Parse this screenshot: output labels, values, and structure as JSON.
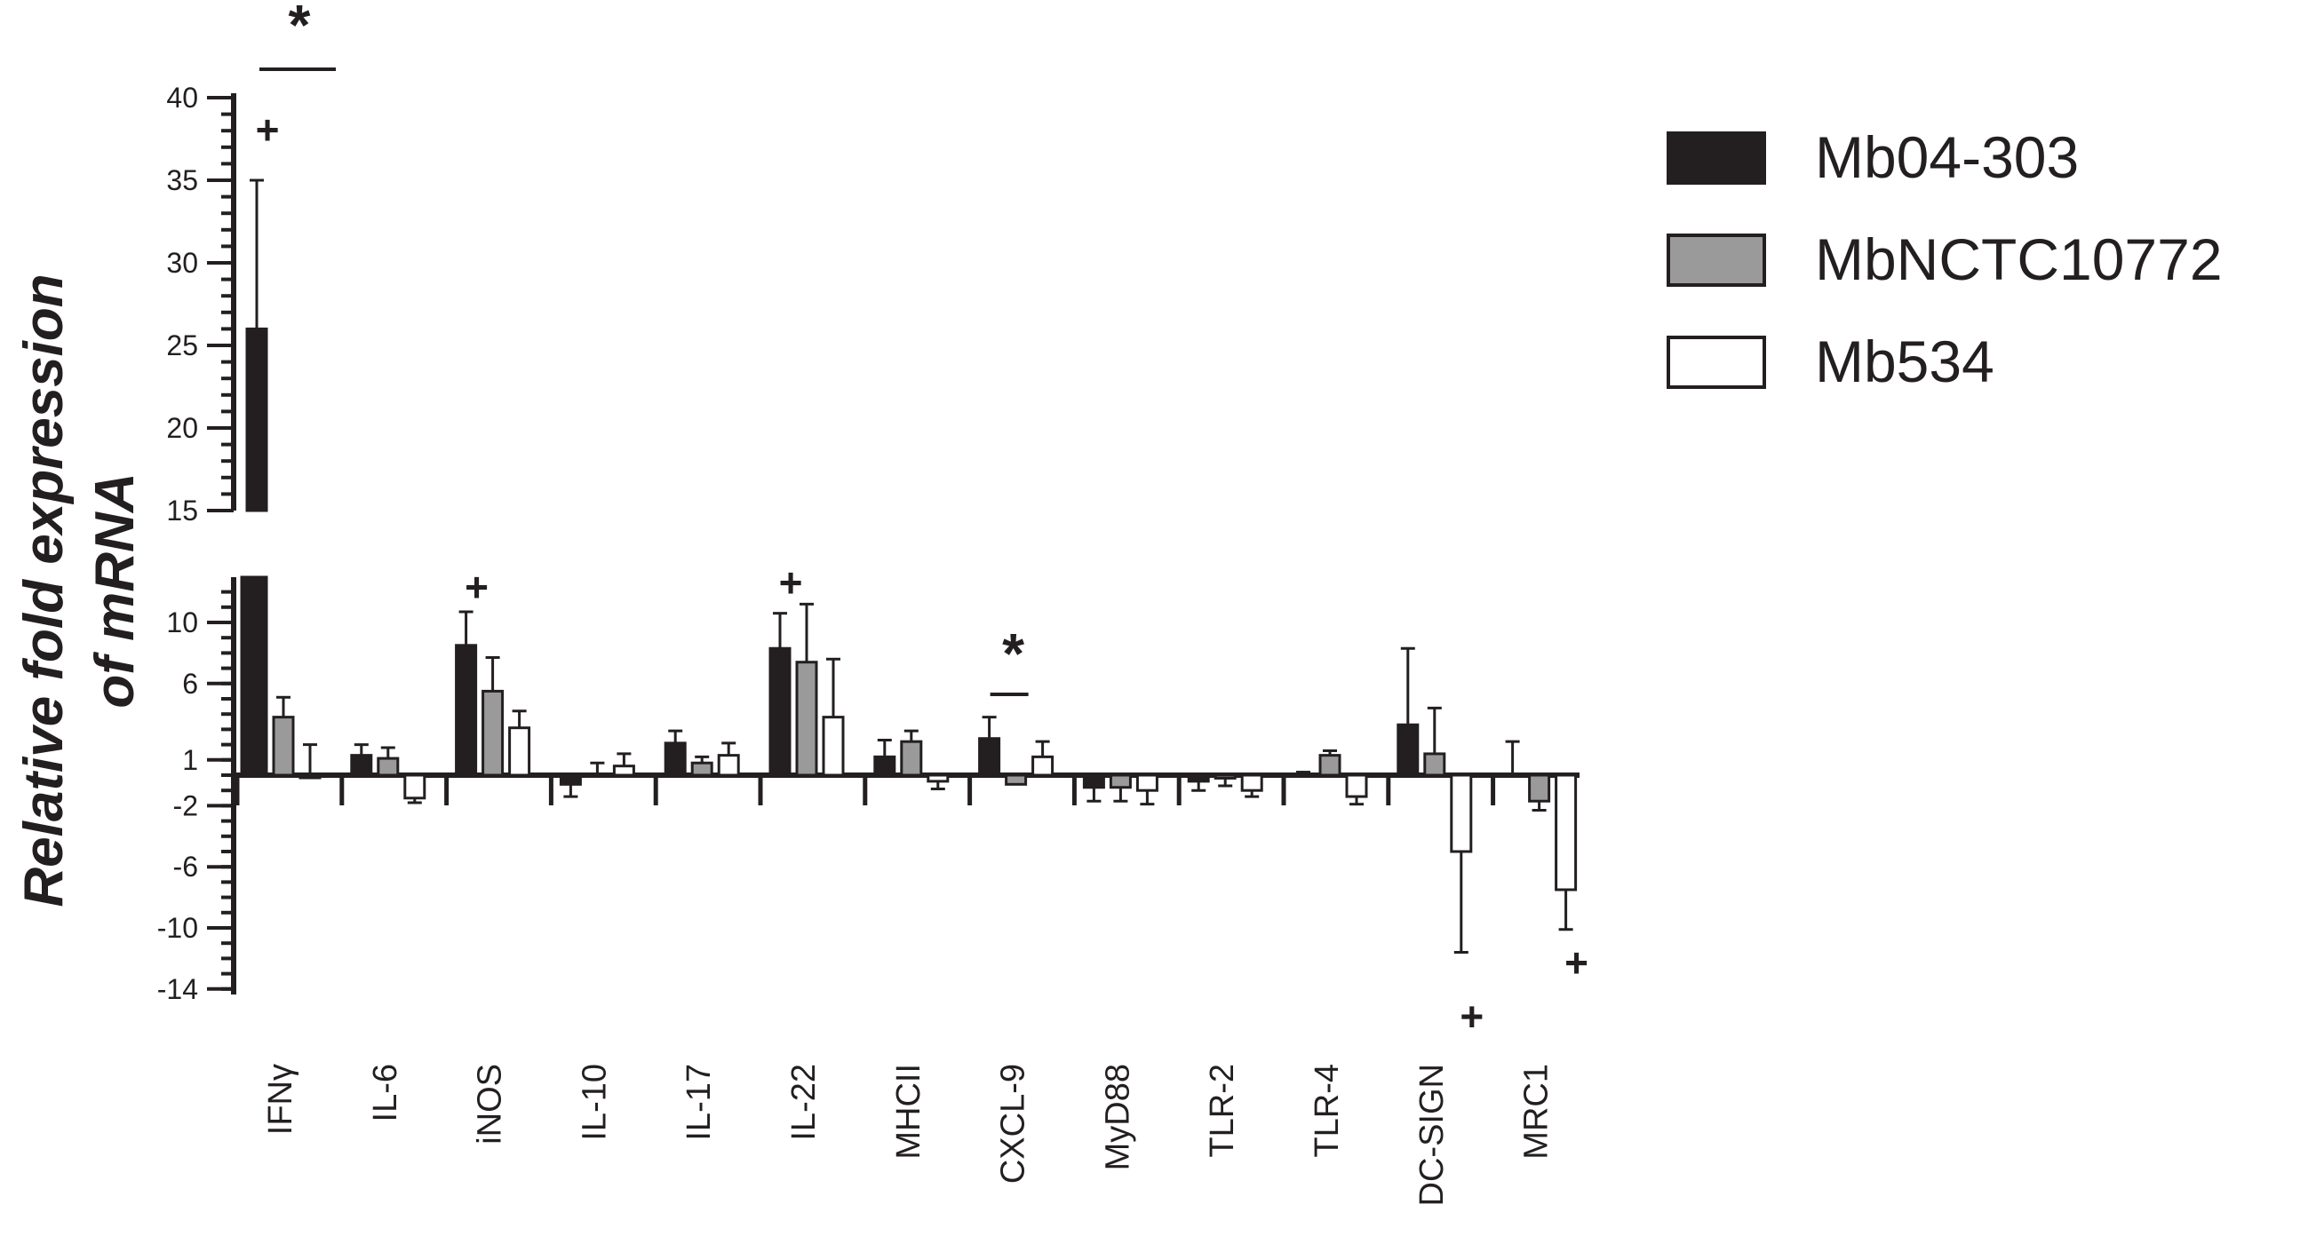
{
  "chart_data": {
    "type": "bar",
    "ylabel": "Relative fold expression of mRNA",
    "categories": [
      "IFNγ",
      "IL-6",
      "iNOS",
      "IL-10",
      "IL-17",
      "IL-22",
      "MHCII",
      "CXCL-9",
      "MyD88",
      "TLR-2",
      "TLR-4",
      "DC-SIGN",
      "MRC1"
    ],
    "series": [
      {
        "name": "Mb04-303",
        "fill": "#231f20",
        "values": [
          26,
          1.3,
          8.5,
          -0.6,
          2.1,
          8.3,
          1.2,
          2.4,
          -0.8,
          -0.4,
          0,
          3.3,
          0
        ],
        "errors": [
          9,
          0.7,
          2.2,
          0.8,
          0.8,
          2.3,
          1.1,
          1.4,
          0.9,
          0.6,
          0.2,
          5.0,
          2.2
        ]
      },
      {
        "name": "MbNCTC10772",
        "fill": "#9a9a9a",
        "values": [
          3.8,
          1.1,
          5.5,
          0,
          0.8,
          7.4,
          2.2,
          -0.6,
          -0.8,
          -0.2,
          1.3,
          1.4,
          -1.7
        ]
      },
      {
        "name": "Mb534",
        "fill": "#ffffff",
        "values": [
          0,
          -1.5,
          3.1,
          0.6,
          1.3,
          3.8,
          -0.4,
          1.2,
          -1.0,
          -1.0,
          -1.4,
          -5.0,
          -7.5
        ]
      }
    ],
    "y_axis_upper": {
      "range": [
        15,
        40
      ],
      "ticks": [
        "40",
        "35",
        "30",
        "25",
        "20",
        "15"
      ]
    },
    "y_axis_lower": {
      "range": [
        -14,
        13
      ],
      "ticks": [
        "10",
        "6",
        "1",
        "-2",
        "-6",
        "-10",
        "-14"
      ]
    },
    "annotations": {
      "plus": "+",
      "star": "*"
    },
    "legend_position": "top-right"
  }
}
